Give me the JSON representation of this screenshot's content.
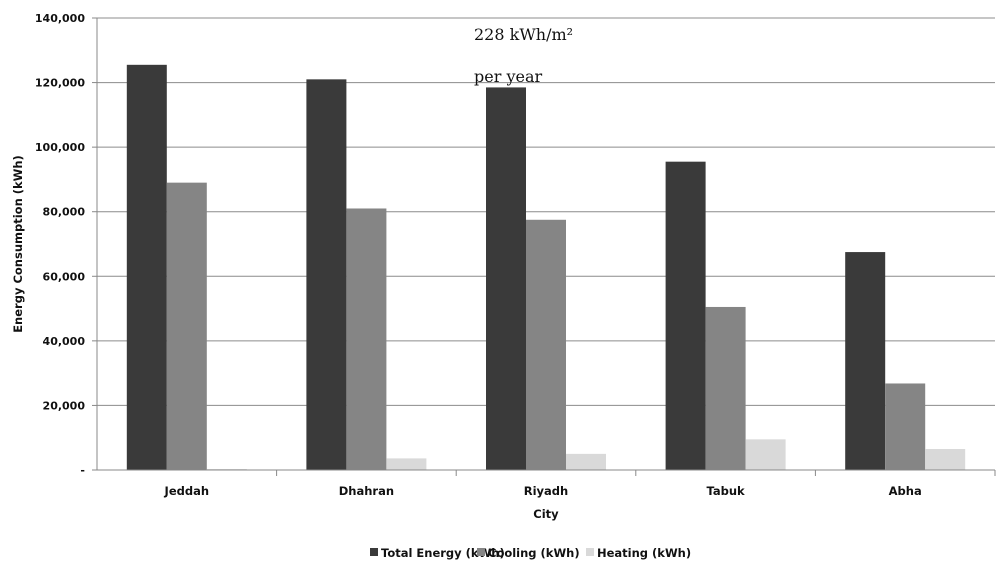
{
  "chart_data": {
    "type": "bar",
    "title": "",
    "xlabel": "City",
    "ylabel": "Energy Consumption (kWh)",
    "categories": [
      "Jeddah",
      "Dhahran",
      "Riyadh",
      "Tabuk",
      "Abha"
    ],
    "series": [
      {
        "name": "Total Energy (kWh)",
        "color": "#3a3a3a",
        "values": [
          125500,
          121000,
          118500,
          95500,
          67500
        ]
      },
      {
        "name": "Cooling (kWh)",
        "color": "#858585",
        "values": [
          89000,
          81000,
          77500,
          50500,
          26800
        ]
      },
      {
        "name": "Heating (kWh)",
        "color": "#d9d9d9",
        "values": [
          300,
          3600,
          5000,
          9500,
          6500
        ]
      }
    ],
    "ylim": [
      0,
      140000
    ],
    "y_ticks": [
      0,
      20000,
      40000,
      60000,
      80000,
      100000,
      120000,
      140000
    ],
    "y_tick_labels": [
      "-",
      "20,000",
      "40,000",
      "60,000",
      "80,000",
      "100,000",
      "120,000",
      "140,000"
    ],
    "grid": "horizontal",
    "legend_position": "bottom",
    "annotations": [
      "228 kWh/m²",
      "per year"
    ]
  }
}
